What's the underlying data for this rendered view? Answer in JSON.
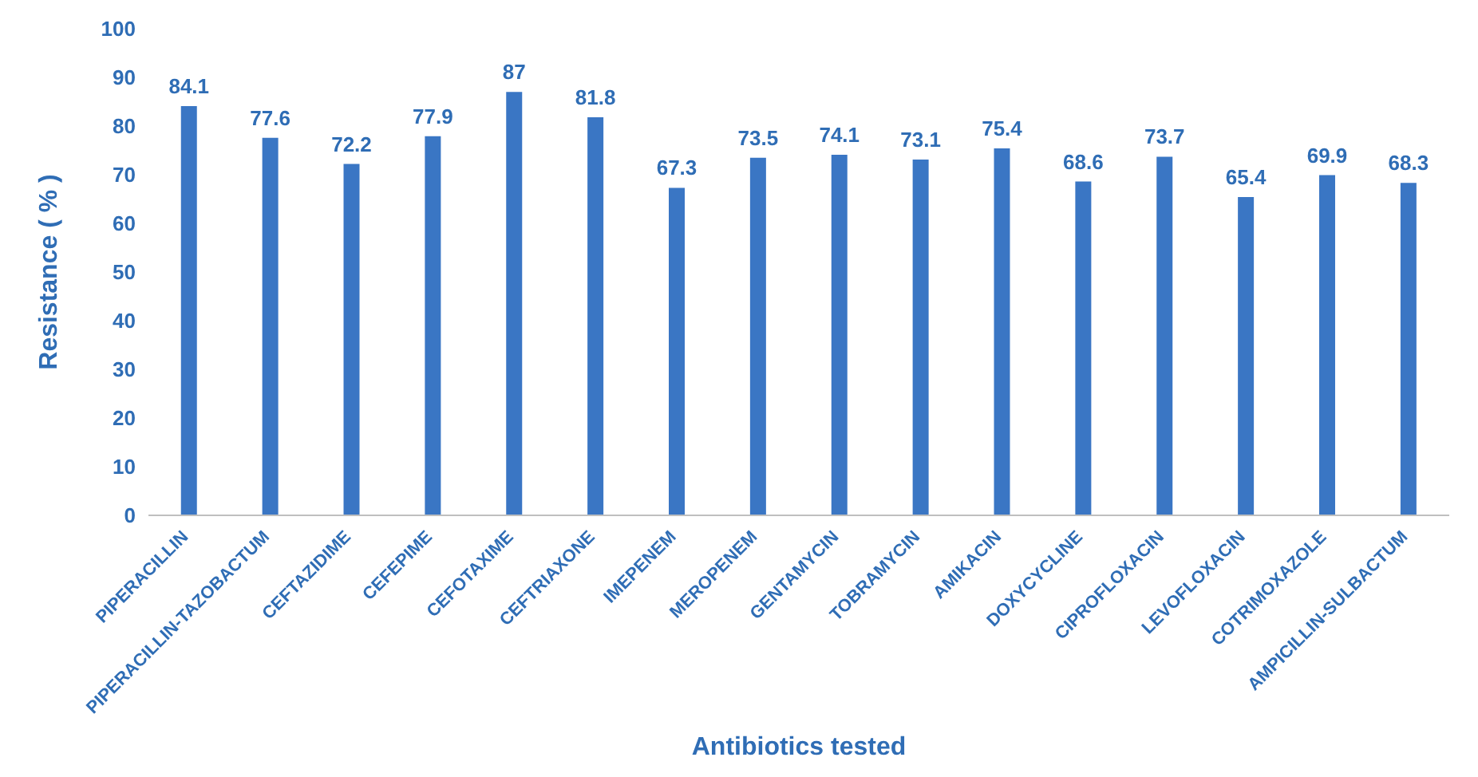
{
  "chart_data": {
    "type": "bar",
    "xlabel": "Antibiotics tested",
    "ylabel": "Resistance ( % )",
    "categories": [
      "PIPERACILLIN",
      "PIPERACILLIN-TAZOBACTUM",
      "CEFTAZIDIME",
      "CEFEPIME",
      "CEFOTAXIME",
      "CEFTRIAXONE",
      "IMEPENEM",
      "MEROPENEM",
      "GENTAMYCIN",
      "TOBRAMYCIN",
      "AMIKACIN",
      "DOXYCYCLINE",
      "CIPROFLOXACIN",
      "LEVOFLOXACIN",
      "COTRIMOXAZOLE",
      "AMPICILLIN-SULBACTUM"
    ],
    "values": [
      84.1,
      77.6,
      72.2,
      77.9,
      87,
      81.8,
      67.3,
      73.5,
      74.1,
      73.1,
      75.4,
      68.6,
      73.7,
      65.4,
      69.9,
      68.3
    ],
    "color": "#3a76c4",
    "ylim": [
      0,
      100
    ],
    "yticks": [
      0,
      10,
      20,
      30,
      40,
      50,
      60,
      70,
      80,
      90,
      100
    ],
    "grid": false,
    "data_labels": true,
    "legend": false
  }
}
